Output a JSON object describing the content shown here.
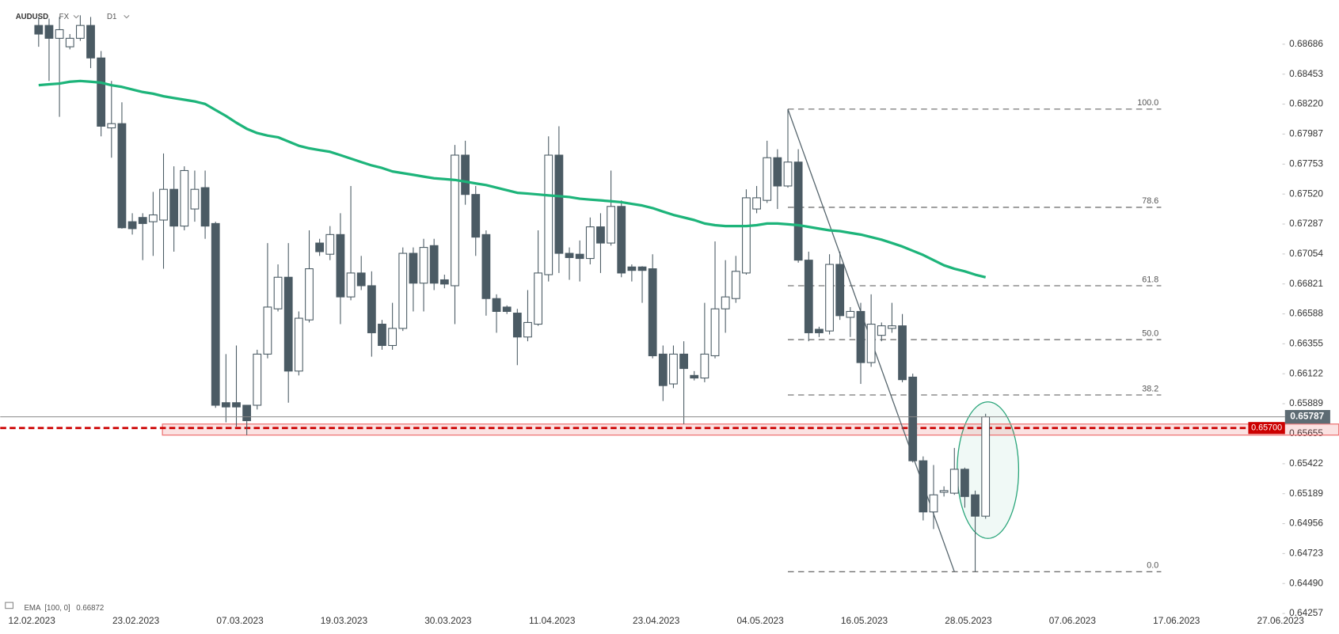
{
  "chart_data": {
    "type": "candlestick",
    "symbol": "AUDUSD",
    "market": "FX",
    "timeframe": "D1",
    "indicator": {
      "name": "EMA",
      "params": "[100, 0]",
      "value": 0.66872,
      "color": "#1db47a"
    },
    "categories": [
      "12.02.2023",
      null,
      null,
      null,
      null,
      null,
      null,
      null,
      null,
      null,
      "23.02.2023",
      null,
      null,
      null,
      null,
      null,
      null,
      null,
      null,
      null,
      "07.03.2023",
      null,
      null,
      null,
      null,
      null,
      null,
      null,
      null,
      null,
      "19.03.2023",
      null,
      null,
      null,
      null,
      null,
      null,
      null,
      null,
      null,
      "30.03.2023",
      null,
      null,
      null,
      null,
      null,
      null,
      null,
      null,
      null,
      "11.04.2023",
      null,
      null,
      null,
      null,
      null,
      null,
      null,
      null,
      null,
      "23.04.2023",
      null,
      null,
      null,
      null,
      null,
      null,
      null,
      null,
      null,
      "04.05.2023",
      null,
      null,
      null,
      null,
      null,
      null,
      null,
      null,
      null,
      "16.05.2023",
      null,
      null,
      null,
      null,
      null,
      null,
      null,
      null,
      null,
      "28.05.2023",
      null,
      null,
      null,
      null,
      null,
      null,
      null,
      null,
      null,
      "07.06.2023",
      null,
      null,
      null,
      null,
      null,
      null,
      null,
      null,
      null,
      "17.06.2023",
      null,
      null,
      null,
      null,
      null,
      null,
      null,
      null,
      null,
      "27.06.2023"
    ],
    "open": [
      0.68832,
      0.68832,
      0.68732,
      0.68666,
      0.68732,
      0.68832,
      0.68579,
      0.68035,
      0.68068,
      0.67305,
      0.67338,
      0.67305,
      0.67318,
      0.67557,
      0.67271,
      0.67404,
      0.6757,
      0.67291,
      0.65897,
      0.65897,
      0.65877,
      0.65877,
      0.66275,
      0.66627,
      0.66873,
      0.66143,
      0.66541,
      0.67139,
      0.67052,
      0.67205,
      0.6672,
      0.66906,
      0.66807,
      0.66508,
      0.66342,
      0.66475,
      0.67059,
      0.66827,
      0.67119,
      0.66853,
      0.66807,
      0.67823,
      0.67517,
      0.67205,
      0.66707,
      0.66641,
      0.66594,
      0.66408,
      0.66508,
      0.66893,
      0.67823,
      0.67059,
      0.67052,
      0.67019,
      0.67265,
      0.67139,
      0.67424,
      0.66953,
      0.66953,
      0.66939,
      0.66275,
      0.66043,
      0.66275,
      0.66109,
      0.66089,
      0.66262,
      0.66627,
      0.66707,
      0.66906,
      0.67404,
      0.67471,
      0.67803,
      0.67583,
      0.67769,
      0.67006,
      0.66468,
      0.66455,
      0.66973,
      0.66561,
      0.66607,
      0.66209,
      0.66421,
      0.66475,
      0.66495,
      0.66096,
      0.65445,
      0.65047,
      0.652,
      0.65193,
      0.65379,
      0.6518,
      0.65014,
      null,
      null,
      null,
      null,
      null,
      null,
      null,
      null,
      null,
      null,
      null,
      null,
      null,
      null,
      null,
      null,
      null,
      null,
      null,
      null,
      null,
      null,
      null,
      null,
      null,
      null,
      null,
      null,
      null
    ],
    "high": [
      0.68898,
      0.68885,
      0.68898,
      0.68765,
      0.68911,
      0.68898,
      0.68633,
      0.684,
      0.68234,
      0.67371,
      0.67371,
      0.67537,
      0.67836,
      0.67736,
      0.67736,
      0.67703,
      0.67703,
      0.67305,
      0.66275,
      0.66342,
      0.65877,
      0.66309,
      0.67139,
      0.66973,
      0.67139,
      0.66607,
      0.67238,
      0.67172,
      0.67271,
      0.67371,
      0.67583,
      0.67039,
      0.66919,
      0.66541,
      0.66674,
      0.67105,
      0.67105,
      0.67172,
      0.67172,
      0.66893,
      0.67902,
      0.67935,
      0.67583,
      0.67238,
      0.6674,
      0.66654,
      0.66627,
      0.66773,
      0.67238,
      0.67969,
      0.68048,
      0.67105,
      0.67159,
      0.67338,
      0.67371,
      0.67703,
      0.67471,
      0.66973,
      0.66959,
      0.67052,
      0.66342,
      0.66342,
      0.66375,
      0.66143,
      0.66674,
      0.67152,
      0.67006,
      0.67039,
      0.67557,
      0.67583,
      0.67935,
      0.67869,
      0.68181,
      0.67869,
      0.67072,
      0.66488,
      0.67052,
      0.67072,
      0.66641,
      0.66674,
      0.6674,
      0.66521,
      0.66674,
      0.66587,
      0.66123,
      0.65479,
      0.65412,
      0.65246,
      0.65545,
      0.65392,
      0.65213,
      0.65811,
      null,
      null,
      null,
      null,
      null,
      null,
      null,
      null,
      null,
      null,
      null,
      null,
      null,
      null,
      null,
      null,
      null,
      null,
      null,
      null,
      null,
      null,
      null,
      null,
      null,
      null,
      null,
      null,
      null
    ],
    "low": [
      0.68666,
      0.684,
      0.68121,
      0.68646,
      0.68712,
      0.685,
      0.67969,
      0.67803,
      0.67251,
      0.67205,
      0.67006,
      0.67039,
      0.66939,
      0.67072,
      0.67238,
      0.67305,
      0.67172,
      0.65857,
      0.65744,
      0.65711,
      0.65645,
      0.65844,
      0.66242,
      0.66607,
      0.65897,
      0.66109,
      0.66521,
      0.67039,
      0.67006,
      0.66508,
      0.66694,
      0.66773,
      0.66255,
      0.66309,
      0.66309,
      0.66455,
      0.66607,
      0.66607,
      0.66773,
      0.66787,
      0.66508,
      0.67437,
      0.67039,
      0.66574,
      0.66441,
      0.66587,
      0.66189,
      0.66375,
      0.66495,
      0.6684,
      0.66906,
      0.66853,
      0.6684,
      0.66973,
      0.66906,
      0.67119,
      0.66873,
      0.6684,
      0.66674,
      0.66242,
      0.6591,
      0.6601,
      0.65731,
      0.6607,
      0.66056,
      0.66242,
      0.66441,
      0.66674,
      0.66893,
      0.67371,
      0.67451,
      0.67404,
      0.6757,
      0.66986,
      0.66375,
      0.66408,
      0.66428,
      0.66541,
      0.66408,
      0.66043,
      0.66176,
      0.66375,
      0.66441,
      0.66056,
      0.65432,
      0.64981,
      0.64914,
      0.65167,
      0.6518,
      0.6508,
      0.64582,
      0.64994,
      null,
      null,
      null,
      null,
      null,
      null,
      null,
      null,
      null,
      null,
      null,
      null,
      null,
      null,
      null,
      null,
      null,
      null,
      null,
      null,
      null,
      null,
      null,
      null,
      null,
      null,
      null,
      null,
      null
    ],
    "close": [
      0.68765,
      0.68732,
      0.68799,
      0.68732,
      0.68832,
      0.68579,
      0.68048,
      0.68068,
      0.67258,
      0.67251,
      0.67291,
      0.67358,
      0.67557,
      0.67271,
      0.67703,
      0.67557,
      0.67271,
      0.65877,
      0.65864,
      0.65864,
      0.65757,
      0.66275,
      0.66641,
      0.66873,
      0.66143,
      0.66554,
      0.66939,
      0.67072,
      0.67205,
      0.6672,
      0.66906,
      0.66807,
      0.66441,
      0.66342,
      0.66475,
      0.67059,
      0.66827,
      0.67105,
      0.66827,
      0.6682,
      0.67823,
      0.67517,
      0.67185,
      0.66707,
      0.66607,
      0.66607,
      0.66408,
      0.66521,
      0.66906,
      0.67823,
      0.67059,
      0.67026,
      0.67019,
      0.67265,
      0.67139,
      0.67424,
      0.66906,
      0.66926,
      0.66926,
      0.66262,
      0.6603,
      0.66275,
      0.66163,
      0.66089,
      0.66275,
      0.66627,
      0.6672,
      0.66919,
      0.67491,
      0.67491,
      0.67803,
      0.67583,
      0.67769,
      0.67006,
      0.66441,
      0.66441,
      0.66973,
      0.66574,
      0.66607,
      0.66209,
      0.66508,
      0.66495,
      0.66495,
      0.66076,
      0.65445,
      0.65047,
      0.6518,
      0.65213,
      0.65379,
      0.65167,
      0.65014,
      0.65787,
      null,
      null,
      null,
      null,
      null,
      null,
      null,
      null,
      null,
      null,
      null,
      null,
      null,
      null,
      null,
      null,
      null,
      null,
      null,
      null,
      null,
      null,
      null,
      null,
      null,
      null,
      null,
      null,
      null
    ],
    "ema": [
      0.68367,
      0.68374,
      0.6838,
      0.68394,
      0.684,
      0.68394,
      0.68387,
      0.68367,
      0.68354,
      0.68334,
      0.68314,
      0.68301,
      0.68281,
      0.68267,
      0.68254,
      0.68241,
      0.68221,
      0.68174,
      0.68128,
      0.68075,
      0.68028,
      0.67995,
      0.67975,
      0.67962,
      0.67929,
      0.67896,
      0.67876,
      0.67862,
      0.67849,
      0.67823,
      0.67796,
      0.67769,
      0.67743,
      0.67723,
      0.67696,
      0.67683,
      0.6767,
      0.67656,
      0.67643,
      0.67637,
      0.6763,
      0.67617,
      0.67603,
      0.6759,
      0.6757,
      0.6755,
      0.6753,
      0.67524,
      0.67517,
      0.6751,
      0.67504,
      0.67497,
      0.67484,
      0.67477,
      0.67471,
      0.67464,
      0.67457,
      0.67444,
      0.67431,
      0.67411,
      0.67384,
      0.67358,
      0.67338,
      0.67318,
      0.67291,
      0.67278,
      0.67271,
      0.67271,
      0.67271,
      0.67278,
      0.67291,
      0.67291,
      0.67285,
      0.67278,
      0.67265,
      0.67251,
      0.67238,
      0.67232,
      0.67218,
      0.67205,
      0.67185,
      0.67165,
      0.67139,
      0.67112,
      0.67079,
      0.67046,
      0.67006,
      0.66966,
      0.66939,
      0.66919,
      0.66893,
      0.66873,
      null,
      null,
      null,
      null,
      null,
      null,
      null,
      null,
      null,
      null,
      null,
      null,
      null,
      null,
      null,
      null,
      null,
      null,
      null,
      null,
      null,
      null,
      null,
      null,
      null,
      null,
      null,
      null,
      null
    ],
    "up_color": "#ffffff",
    "down_color": "#4b5b64",
    "ylim": [
      0.6425,
      0.6903
    ],
    "yticks": [
      0.68686,
      0.68453,
      {
        "value": 0.6822,
        "label": "0.68220"
      },
      0.67987,
      0.67753,
      {
        "value": 0.6752,
        "label": "0.67520"
      },
      0.67287,
      0.67054,
      0.66821,
      0.66588,
      0.66355,
      0.66122,
      0.65889,
      0.65655,
      0.65422,
      0.65189,
      0.64956,
      0.64723,
      {
        "value": 0.6449,
        "label": "0.64490"
      },
      0.64257
    ],
    "support": {
      "value": 0.657,
      "label": "0.65700",
      "zone": [
        0.65645,
        0.65731
      ],
      "color": "#cc0000"
    },
    "fibonacci": [
      {
        "label": "100.0",
        "value": 0.68181
      },
      {
        "label": "78.6",
        "value": 0.67417
      },
      {
        "label": "61.8",
        "value": 0.66807
      },
      {
        "label": "50.0",
        "value": 0.66388
      },
      {
        "label": "38.2",
        "value": 0.65957
      },
      {
        "label": "0.0",
        "value": 0.64582
      }
    ]
  }
}
